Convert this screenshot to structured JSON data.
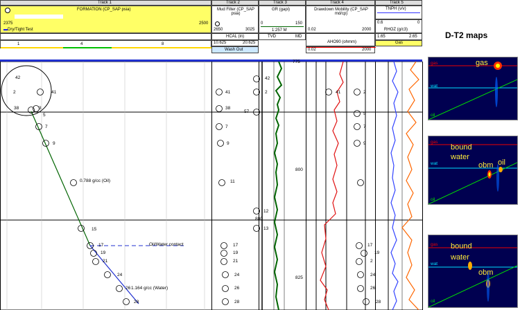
{
  "tracks": {
    "track1": {
      "title": "Track 1",
      "curve": "FORMATION (CP_SAP psia)",
      "left_val": "2375",
      "right_val": "2500",
      "flag": "Dry/Tight Test",
      "scale": [
        "1",
        "4",
        "8"
      ]
    },
    "track2": {
      "title": "Track 2",
      "curve": "Mud Filter (CP_SAP psia)",
      "left_val": "2650",
      "right_val": "3025",
      "hcal": "HCAL (in)",
      "hcal_left": "10.625",
      "hcal_right": "20.625",
      "washout": "Wash Out"
    },
    "track3": {
      "title": "Track 3",
      "curve": "GR (gapi)",
      "left_val": "0",
      "right_val": "150",
      "ratio": "1:257 M",
      "tvd": "TVD",
      "md": "MD"
    },
    "track4": {
      "title": "Track 4",
      "curve": "Drawdown Mobility (CP_SAP md/cp)",
      "left_val": "0.02",
      "right_val": "2000",
      "aho": "AHO90 (ohmm)",
      "aho_left": "0.02",
      "aho_right": "2000"
    },
    "track5": {
      "title": "Track 5",
      "curve": "TNPH (v/v)",
      "left_val": "0.6",
      "right_val": "0",
      "rhoz": "RHOZ (g/c3)",
      "rhoz_left": "1.65",
      "rhoz_right": "2.65",
      "gas": "Gas"
    }
  },
  "depths": {
    "d775": "775",
    "d800": "800",
    "d825": "825",
    "mid": "57",
    "mid2": "800"
  },
  "points_left": [
    "42",
    "2",
    "41",
    "38",
    "3",
    "5",
    "7",
    "9",
    "11",
    "15",
    "17",
    "19",
    "21",
    "24",
    "26",
    "28"
  ],
  "points_mid": [
    "42",
    "41",
    "2",
    "38",
    "5",
    "7",
    "9",
    "11",
    "12",
    "13",
    "17",
    "19",
    "21",
    "24",
    "26",
    "28"
  ],
  "points_right": [
    "41",
    "2",
    "5",
    "7",
    "9",
    "17",
    "19",
    "2",
    "24",
    "26",
    "28"
  ],
  "annotations": {
    "oil_grad": "0.788 g/cc (Oil)",
    "water_grad": "1.164 g/cc (Water)",
    "contact": "Oil/Water contact"
  },
  "dt2": {
    "title": "D-T2 maps",
    "map1": {
      "gas": "gas",
      "wat": "wat",
      "oil": "oil",
      "big": "gas"
    },
    "map2": {
      "gas": "gas",
      "wat": "wat",
      "oil": "oil",
      "bound": "bound",
      "water": "water",
      "obm": "obm",
      "oil_label": "oil"
    },
    "map3": {
      "gas": "gas",
      "wat": "wat",
      "oil": "oil",
      "bound": "bound",
      "water": "water",
      "obm": "obm"
    }
  }
}
